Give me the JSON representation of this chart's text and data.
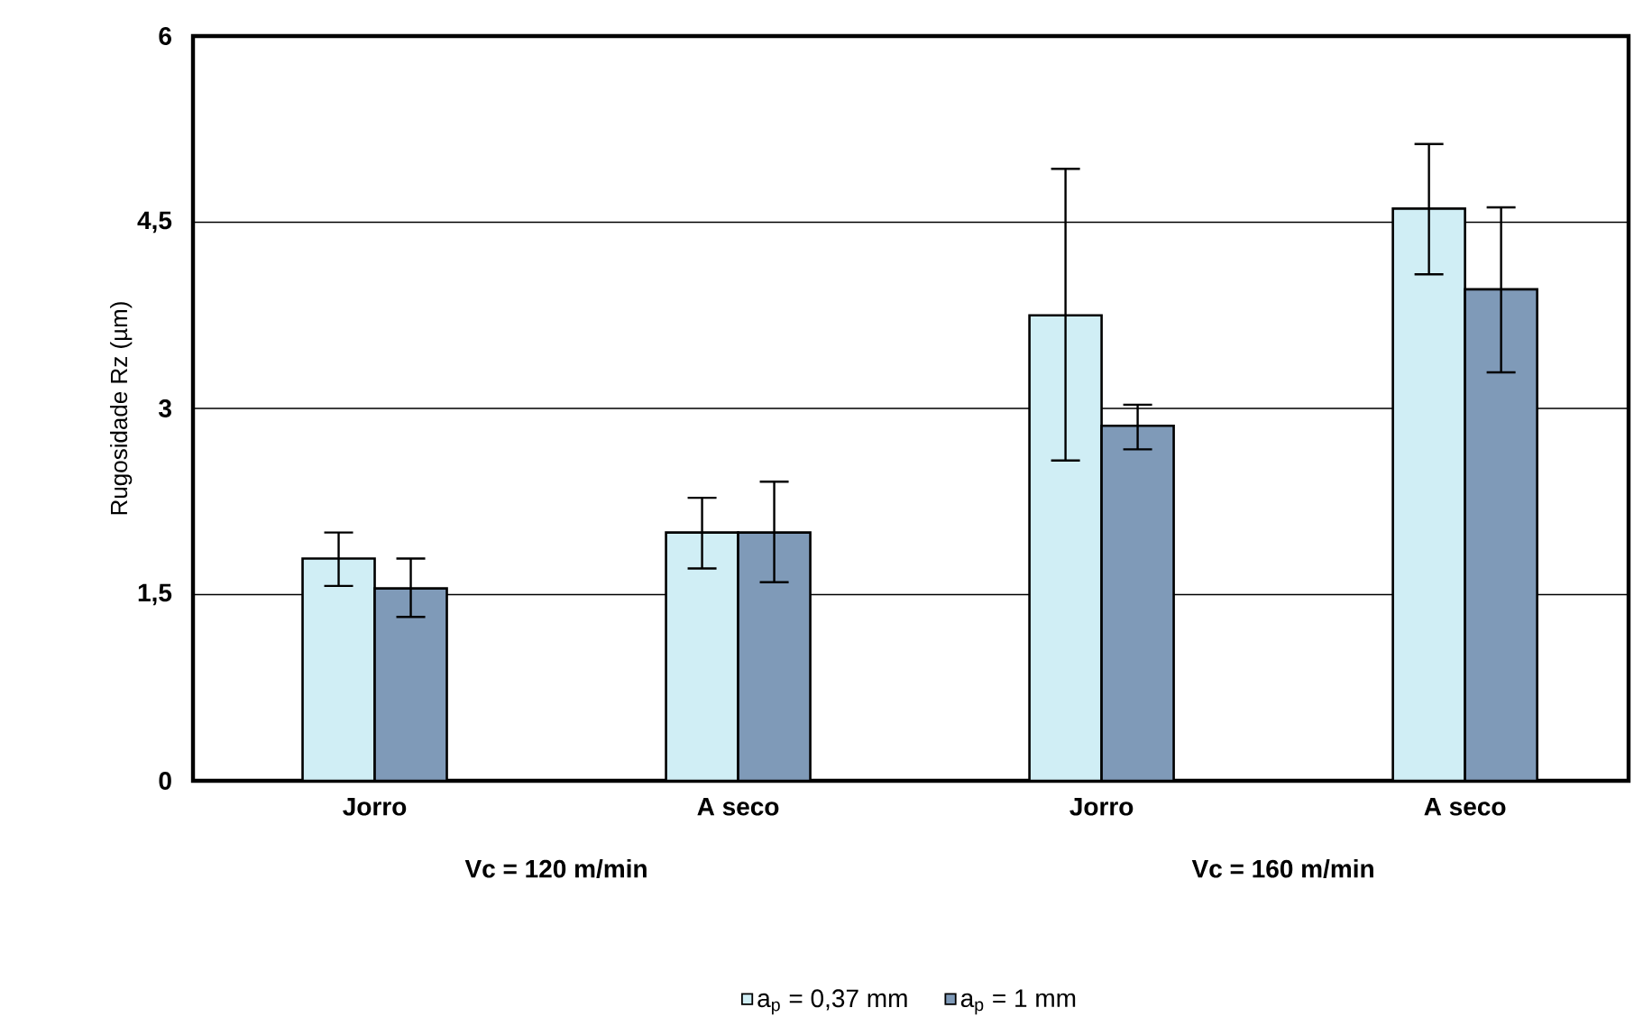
{
  "chart_data": {
    "type": "bar",
    "ylabel": "Rugosidade Rz (µm)",
    "categories": [
      "Jorro",
      "A  seco",
      "Jorro",
      "A seco"
    ],
    "series": [
      {
        "name": "a$_{p}$ = 0,37 mm",
        "color": "#d0eef5",
        "values": [
          1.79,
          2.0,
          3.75,
          4.61
        ],
        "errors": [
          [
            1.57,
            2.0
          ],
          [
            1.71,
            2.28
          ],
          [
            2.58,
            4.93
          ],
          [
            4.08,
            5.13
          ]
        ]
      },
      {
        "name": "a$_{p}$ = 1 mm",
        "color": "#7f9ab8",
        "values": [
          1.55,
          2.0,
          2.86,
          3.96
        ],
        "errors": [
          [
            1.32,
            1.79
          ],
          [
            1.6,
            2.41
          ],
          [
            2.67,
            3.03
          ],
          [
            3.29,
            4.62
          ]
        ]
      }
    ],
    "ylim": [
      0,
      6
    ],
    "yticks": [
      0,
      {
        "value": 1.5,
        "label": "1,5"
      },
      3,
      {
        "value": 4.5,
        "label": "4,5"
      },
      6
    ],
    "grid": "y",
    "legend": "bottom",
    "annotations": [
      "Vc = 120 m/min",
      "Vc = 160 m/min"
    ]
  }
}
